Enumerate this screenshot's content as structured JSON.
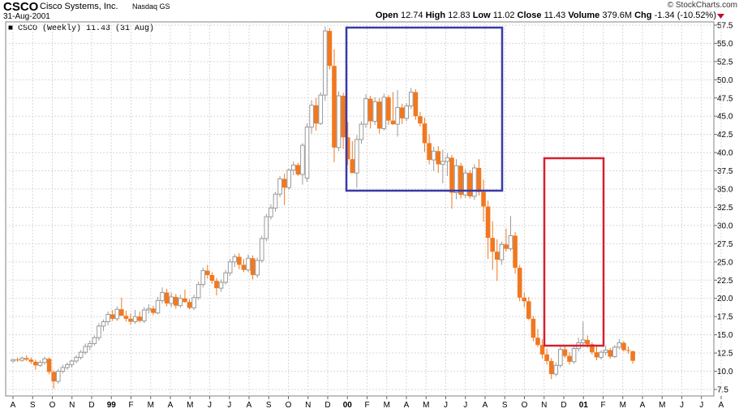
{
  "header": {
    "ticker": "CSCO",
    "company": "Cisco Systems, Inc.",
    "exchange": "Nasdaq GS",
    "date": "31-Aug-2001",
    "watermark": "© StockCharts.com",
    "legend": "CSCO (Weekly) 11.43 (31 Aug)",
    "stats": {
      "open_label": "Open",
      "open": "12.74",
      "high_label": "High",
      "high": "12.83",
      "low_label": "Low",
      "low": "11.02",
      "close_label": "Close",
      "close": "11.43",
      "volume_label": "Volume",
      "volume": "379.6M",
      "chg_label": "Chg",
      "chg": "-1.34 (-10.52%)"
    }
  },
  "colors": {
    "up": "#9a9a9a",
    "down": "#f07820",
    "grid": "#d8d8d8",
    "box_blue": "#3a3aa8",
    "box_red": "#d42030",
    "chg_arrow": "#c0102a"
  },
  "chart_data": {
    "type": "candlestick",
    "title": "CSCO (Weekly)",
    "ylim": [
      6,
      58
    ],
    "y_ticks": [
      "57.5",
      "55.0",
      "52.5",
      "50.0",
      "47.5",
      "45.0",
      "42.5",
      "40.0",
      "37.5",
      "35.0",
      "32.5",
      "30.0",
      "27.5",
      "25.0",
      "22.5",
      "20.0",
      "17.5",
      "15.0",
      "12.5",
      "10.0",
      "7.5"
    ],
    "x_ticks": [
      "A",
      "S",
      "O",
      "N",
      "D",
      "99",
      "F",
      "M",
      "A",
      "M",
      "J",
      "J",
      "A",
      "S",
      "O",
      "N",
      "D",
      "00",
      "F",
      "M",
      "A",
      "M",
      "J",
      "J",
      "A",
      "S",
      "O",
      "N",
      "D",
      "01",
      "F",
      "M",
      "A",
      "M",
      "J",
      "J",
      "A"
    ],
    "x_ticks_bold": [
      "99",
      "00",
      "01"
    ],
    "grid": true,
    "weeks_per_month": 4.348,
    "candles": [
      [
        11.4,
        11.7,
        11.2,
        11.6
      ],
      [
        11.6,
        11.9,
        11.3,
        11.5
      ],
      [
        11.5,
        12.0,
        11.3,
        11.8
      ],
      [
        11.8,
        12.2,
        11.4,
        11.6
      ],
      [
        11.6,
        11.9,
        11.0,
        11.3
      ],
      [
        11.3,
        11.6,
        10.2,
        10.8
      ],
      [
        10.8,
        11.5,
        10.6,
        11.2
      ],
      [
        11.2,
        12.0,
        10.9,
        11.7
      ],
      [
        11.7,
        11.9,
        9.6,
        9.9
      ],
      [
        9.9,
        10.1,
        7.6,
        8.6
      ],
      [
        8.6,
        10.3,
        8.3,
        10.0
      ],
      [
        10.0,
        10.9,
        9.7,
        10.5
      ],
      [
        10.5,
        11.2,
        10.2,
        10.9
      ],
      [
        10.9,
        11.6,
        10.5,
        11.4
      ],
      [
        11.4,
        12.2,
        11.1,
        11.9
      ],
      [
        11.9,
        12.9,
        11.6,
        12.6
      ],
      [
        12.6,
        13.8,
        12.3,
        13.4
      ],
      [
        13.4,
        14.2,
        12.9,
        13.8
      ],
      [
        13.8,
        14.9,
        13.5,
        14.6
      ],
      [
        14.6,
        16.6,
        14.2,
        16.2
      ],
      [
        16.2,
        17.1,
        15.5,
        16.8
      ],
      [
        16.8,
        18.2,
        16.3,
        17.8
      ],
      [
        17.8,
        18.4,
        16.9,
        17.2
      ],
      [
        17.2,
        18.9,
        16.9,
        18.5
      ],
      [
        18.5,
        20.1,
        18.1,
        17.6
      ],
      [
        17.6,
        18.3,
        16.8,
        17.2
      ],
      [
        17.2,
        17.9,
        16.4,
        16.8
      ],
      [
        16.8,
        18.4,
        16.5,
        17.5
      ],
      [
        17.5,
        18.2,
        16.7,
        16.9
      ],
      [
        16.9,
        18.8,
        16.6,
        18.4
      ],
      [
        18.4,
        19.2,
        17.9,
        18.6
      ],
      [
        18.6,
        19.0,
        17.7,
        18.0
      ],
      [
        18.0,
        20.2,
        17.8,
        19.7
      ],
      [
        19.7,
        21.5,
        19.3,
        20.8
      ],
      [
        20.8,
        21.3,
        18.9,
        19.3
      ],
      [
        19.3,
        20.8,
        18.8,
        20.2
      ],
      [
        20.2,
        20.6,
        18.6,
        19.0
      ],
      [
        19.0,
        20.5,
        18.7,
        20.0
      ],
      [
        20.0,
        21.2,
        19.4,
        19.5
      ],
      [
        19.5,
        19.9,
        18.5,
        18.7
      ],
      [
        18.7,
        20.5,
        18.4,
        20.1
      ],
      [
        20.1,
        22.3,
        19.8,
        21.9
      ],
      [
        21.9,
        24.2,
        21.5,
        23.8
      ],
      [
        23.8,
        24.6,
        22.7,
        23.2
      ],
      [
        23.2,
        23.6,
        22.0,
        22.4
      ],
      [
        22.4,
        22.8,
        20.4,
        21.4
      ],
      [
        21.4,
        22.6,
        20.9,
        22.2
      ],
      [
        22.2,
        23.9,
        21.9,
        23.5
      ],
      [
        23.5,
        25.4,
        23.1,
        25.0
      ],
      [
        25.0,
        26.1,
        24.3,
        25.7
      ],
      [
        25.7,
        26.2,
        24.0,
        24.6
      ],
      [
        24.6,
        25.4,
        23.6,
        23.9
      ],
      [
        23.9,
        26.0,
        23.6,
        25.5
      ],
      [
        25.5,
        25.9,
        22.6,
        23.2
      ],
      [
        23.2,
        25.6,
        22.8,
        25.2
      ],
      [
        25.2,
        28.6,
        24.9,
        28.2
      ],
      [
        28.2,
        31.6,
        27.8,
        31.2
      ],
      [
        31.2,
        32.9,
        30.8,
        32.4
      ],
      [
        32.4,
        34.6,
        31.9,
        34.3
      ],
      [
        34.3,
        36.8,
        33.9,
        36.4
      ],
      [
        36.4,
        37.1,
        32.8,
        35.2
      ],
      [
        35.2,
        37.8,
        34.9,
        37.6
      ],
      [
        37.6,
        38.8,
        36.9,
        38.3
      ],
      [
        38.3,
        38.6,
        36.8,
        37.0
      ],
      [
        37.0,
        41.3,
        35.6,
        41.0
      ],
      [
        36.5,
        44.0,
        36.0,
        43.5
      ],
      [
        43.5,
        47.2,
        42.6,
        46.5
      ],
      [
        46.5,
        47.5,
        43.0,
        44.0
      ],
      [
        44.0,
        48.3,
        43.8,
        47.9
      ],
      [
        47.9,
        57.3,
        47.1,
        56.7
      ],
      [
        56.7,
        57.1,
        51.4,
        51.9
      ],
      [
        51.9,
        54.2,
        38.7,
        40.7
      ],
      [
        40.7,
        48.4,
        40.2,
        47.8
      ],
      [
        47.8,
        48.2,
        40.5,
        42.1
      ],
      [
        42.1,
        44.2,
        38.3,
        39.1
      ],
      [
        39.1,
        41.6,
        37.4,
        37.2
      ],
      [
        37.2,
        42.4,
        35.2,
        41.8
      ],
      [
        41.8,
        44.3,
        41.2,
        43.9
      ],
      [
        43.9,
        48.0,
        43.4,
        47.4
      ],
      [
        47.4,
        47.8,
        43.3,
        44.3
      ],
      [
        44.3,
        47.6,
        43.8,
        47.0
      ],
      [
        47.0,
        47.5,
        42.6,
        43.3
      ],
      [
        43.3,
        48.1,
        43.0,
        47.6
      ],
      [
        47.6,
        47.9,
        43.8,
        44.4
      ],
      [
        44.4,
        48.3,
        43.8,
        43.9
      ],
      [
        43.9,
        48.6,
        42.2,
        46.2
      ],
      [
        46.2,
        46.7,
        43.9,
        44.7
      ],
      [
        44.7,
        46.8,
        44.3,
        46.4
      ],
      [
        46.4,
        48.9,
        46.0,
        48.3
      ],
      [
        48.3,
        48.7,
        44.5,
        45.0
      ],
      [
        45.0,
        45.6,
        43.6,
        44.0
      ],
      [
        44.0,
        44.8,
        40.1,
        41.3
      ],
      [
        41.3,
        42.5,
        38.4,
        39.0
      ],
      [
        39.0,
        40.8,
        37.5,
        40.2
      ],
      [
        40.2,
        40.9,
        37.2,
        38.4
      ],
      [
        38.4,
        40.4,
        35.8,
        38.8
      ],
      [
        38.8,
        39.9,
        36.8,
        39.3
      ],
      [
        39.3,
        39.7,
        32.3,
        34.5
      ],
      [
        34.5,
        39.1,
        33.6,
        38.2
      ],
      [
        38.2,
        38.6,
        33.7,
        34.2
      ],
      [
        34.2,
        37.7,
        33.8,
        37.2
      ],
      [
        37.2,
        37.6,
        33.7,
        34.0
      ],
      [
        34.0,
        38.4,
        33.5,
        37.9
      ],
      [
        37.9,
        39.1,
        34.1,
        34.6
      ],
      [
        34.6,
        36.3,
        30.5,
        32.6
      ],
      [
        32.6,
        33.4,
        25.4,
        28.3
      ],
      [
        28.3,
        30.6,
        23.9,
        26.4
      ],
      [
        26.4,
        28.1,
        22.4,
        25.3
      ],
      [
        25.3,
        27.8,
        24.6,
        27.4
      ],
      [
        27.4,
        29.6,
        26.4,
        26.8
      ],
      [
        26.8,
        31.3,
        26.5,
        28.6
      ],
      [
        28.6,
        29.1,
        23.4,
        24.2
      ],
      [
        24.2,
        24.6,
        19.6,
        20.1
      ],
      [
        20.1,
        20.8,
        18.8,
        19.6
      ],
      [
        19.6,
        20.2,
        17.0,
        17.2
      ],
      [
        17.2,
        17.6,
        14.1,
        14.6
      ],
      [
        14.6,
        15.8,
        13.3,
        13.6
      ],
      [
        13.6,
        14.4,
        11.7,
        12.3
      ],
      [
        12.3,
        13.1,
        10.9,
        11.4
      ],
      [
        11.4,
        11.8,
        8.9,
        9.6
      ],
      [
        9.6,
        11.2,
        9.3,
        10.8
      ],
      [
        10.8,
        13.4,
        10.5,
        13.0
      ],
      [
        13.0,
        13.6,
        11.8,
        12.1
      ],
      [
        12.1,
        12.6,
        10.9,
        11.3
      ],
      [
        11.3,
        13.5,
        11.0,
        13.1
      ],
      [
        13.1,
        14.6,
        12.7,
        13.9
      ],
      [
        13.9,
        16.8,
        13.6,
        14.3
      ],
      [
        14.3,
        14.9,
        13.2,
        13.7
      ],
      [
        13.7,
        14.0,
        12.3,
        12.6
      ],
      [
        12.6,
        13.4,
        11.5,
        11.9
      ],
      [
        11.9,
        12.9,
        11.6,
        12.6
      ],
      [
        12.6,
        13.5,
        12.2,
        12.9
      ],
      [
        12.9,
        13.2,
        11.7,
        12.0
      ],
      [
        12.0,
        13.6,
        11.8,
        13.3
      ],
      [
        13.3,
        14.4,
        13.0,
        13.9
      ],
      [
        13.9,
        14.1,
        12.7,
        12.9
      ],
      [
        12.9,
        13.4,
        12.4,
        12.8
      ],
      [
        12.74,
        12.83,
        11.02,
        11.43
      ]
    ],
    "annotations": [
      {
        "type": "rectangle",
        "color": "blue",
        "y_range": [
          35.0,
          61.0
        ],
        "x_range": [
          "Jan 2000",
          "Oct 2000"
        ]
      },
      {
        "type": "rectangle",
        "color": "red",
        "y_range": [
          13.6,
          39.4
        ],
        "x_range": [
          "Dec 2000",
          "Mar 2001"
        ]
      }
    ]
  }
}
